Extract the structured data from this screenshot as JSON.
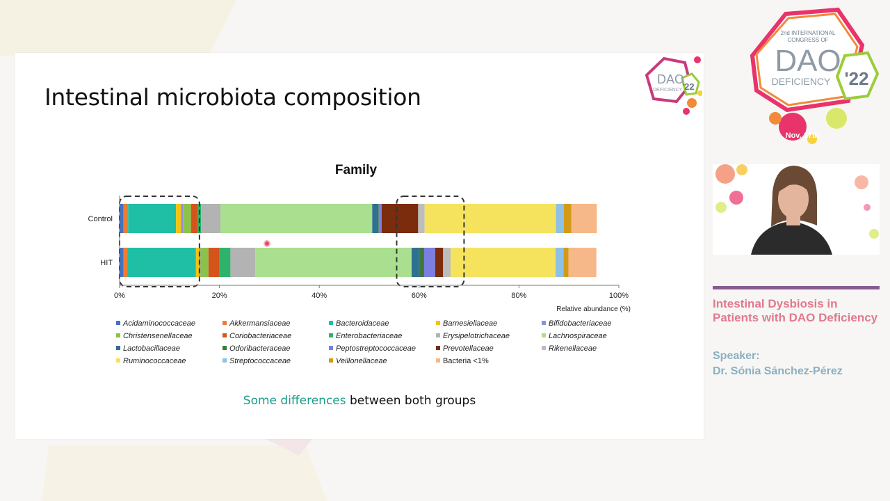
{
  "slide": {
    "title": "Intestinal microbiota composition",
    "caption_highlight": "Some differences",
    "caption_rest": " between both groups"
  },
  "chart_data": {
    "type": "bar",
    "orientation": "horizontal",
    "stacked": true,
    "title": "Family",
    "xlabel": "Relative abundance (%)",
    "xlim": [
      0,
      100
    ],
    "x_ticks": [
      "0%",
      "20%",
      "40%",
      "60%",
      "80%",
      "100%"
    ],
    "categories": [
      "Control",
      "HIT"
    ],
    "legend_position": "bottom",
    "series": [
      {
        "name": "Acidaminococcaceae",
        "color": "#4472c4",
        "values": [
          0.8,
          0.8
        ]
      },
      {
        "name": "Akkermansiaceae",
        "color": "#ed7d31",
        "values": [
          0.9,
          0.8
        ]
      },
      {
        "name": "Bacteroidaceae",
        "color": "#1fbfa6",
        "values": [
          9.6,
          13.7
        ]
      },
      {
        "name": "Barnesiellaceae",
        "color": "#f2c40f",
        "values": [
          1.0,
          0.6
        ]
      },
      {
        "name": "Bifidobacteriaceae",
        "color": "#8e8ee0",
        "values": [
          0.4,
          0.3
        ]
      },
      {
        "name": "Christensenellaceae",
        "color": "#8bc34a",
        "values": [
          1.6,
          1.6
        ]
      },
      {
        "name": "Coriobacteriaceae",
        "color": "#d4541b",
        "values": [
          1.4,
          2.2
        ]
      },
      {
        "name": "Enterobacteriaceae",
        "color": "#2db36b",
        "values": [
          0.6,
          2.2
        ]
      },
      {
        "name": "Erysipelotrichaceae",
        "color": "#b3b3b3",
        "values": [
          3.9,
          5.0
        ]
      },
      {
        "name": "Lachnospiraceae",
        "color": "#a9df8f",
        "values": [
          30.4,
          31.3
        ]
      },
      {
        "name": "Lactobacillaceae",
        "color": "#2f6f8f",
        "values": [
          1.0,
          1.5
        ]
      },
      {
        "name": "Odoribacteraceae",
        "color": "#3d7a3a",
        "values": [
          0.3,
          1.0
        ]
      },
      {
        "name": "Peptostreptococcaceae",
        "color": "#7b7fe0",
        "values": [
          0.6,
          2.2
        ]
      },
      {
        "name": "Prevotellaceae",
        "color": "#7a2c0c",
        "values": [
          7.3,
          1.6
        ]
      },
      {
        "name": "Rikenellaceae",
        "color": "#bdbdbd",
        "values": [
          1.3,
          1.5
        ]
      },
      {
        "name": "Ruminococcaceae",
        "color": "#f5e35e",
        "values": [
          26.3,
          21.0
        ]
      },
      {
        "name": "Streptococcaceae",
        "color": "#8ec1e6",
        "values": [
          1.6,
          1.6
        ]
      },
      {
        "name": "Veillonellaceae",
        "color": "#d39a18",
        "values": [
          1.5,
          1.0
        ]
      },
      {
        "name": "Bacteria <1%",
        "color": "#f6b889",
        "values": [
          5.1,
          5.6
        ]
      }
    ],
    "highlight_boxes_x_ranges": [
      [
        0,
        16
      ],
      [
        55.5,
        69
      ]
    ]
  },
  "event": {
    "mini_logo": {
      "name": "DAO",
      "sub": "DEFICIENCY",
      "year": "'22"
    },
    "logo": {
      "line1": "2nd INTERNATIONAL",
      "line2": "CONGRESS OF",
      "name": "DAO",
      "sub": "DEFICIENCY",
      "year": "'22",
      "date": "Nov. 17th"
    },
    "talk_title": "Intestinal Dysbiosis in Patients with DAO Deficiency",
    "speaker_label": "Speaker:",
    "speaker_name": "Dr. Sónia Sánchez-Pérez"
  }
}
